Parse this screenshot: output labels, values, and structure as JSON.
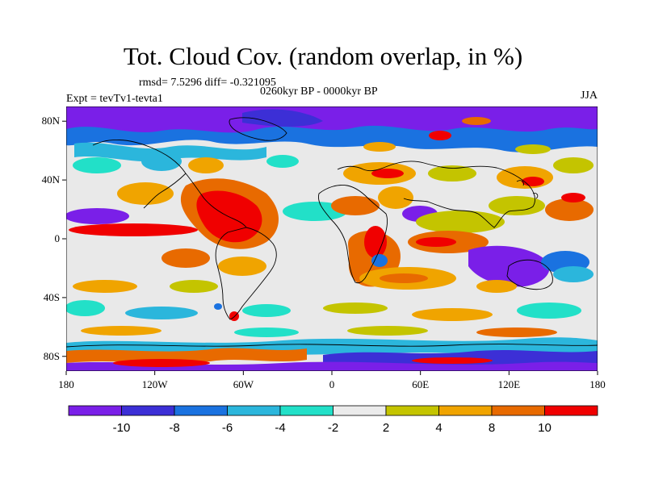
{
  "title": "Tot. Cloud Cov. (random overlap, in %)",
  "stats": "rmsd= 7.5296 diff= -0.321095",
  "period": "0260kyr BP - 0000kyr BP",
  "experiment": "Expt = tevTv1-tevta1",
  "season": "JJA",
  "map": {
    "lat_ticks": [
      {
        "lat": 80,
        "label": "80N"
      },
      {
        "lat": 40,
        "label": "40N"
      },
      {
        "lat": 0,
        "label": "0"
      },
      {
        "lat": -40,
        "label": "40S"
      },
      {
        "lat": -80,
        "label": "80S"
      }
    ],
    "lon_ticks": [
      {
        "lon": -180,
        "label": "180"
      },
      {
        "lon": -120,
        "label": "120W"
      },
      {
        "lon": -60,
        "label": "60W"
      },
      {
        "lon": 0,
        "label": "0"
      },
      {
        "lon": 60,
        "label": "60E"
      },
      {
        "lon": 120,
        "label": "120E"
      },
      {
        "lon": 180,
        "label": "180"
      }
    ],
    "background_color": "#e9e9e9"
  },
  "colorbar": {
    "colors": [
      "#7a1fe8",
      "#3c2fd6",
      "#1a72e0",
      "#2bb6dc",
      "#22e0c8",
      "#ebebeb",
      "#c4c400",
      "#f0a400",
      "#e86a00",
      "#f00000"
    ],
    "labels": [
      "-10",
      "-8",
      "-6",
      "-4",
      "-2",
      "2",
      "4",
      "8",
      "10"
    ]
  }
}
